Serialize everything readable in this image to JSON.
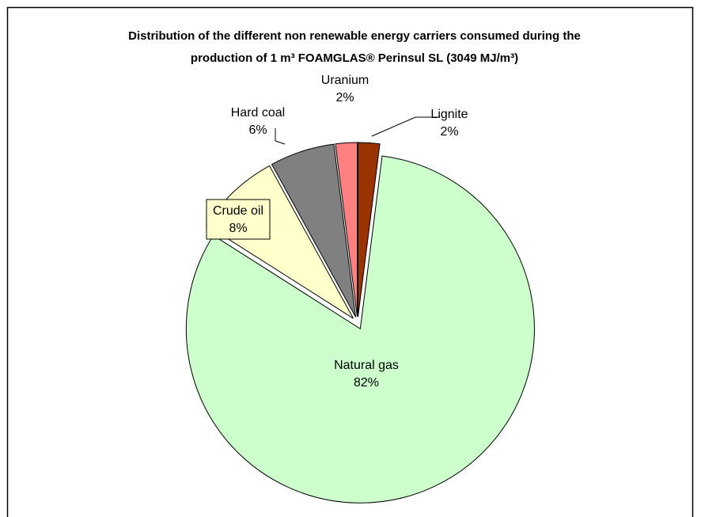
{
  "chart_data": {
    "type": "pie",
    "title": [
      "Distribution of the different non renewable energy carriers consumed during the",
      "production of 1 m³ FOAMGLAS® Perinsul SL (3049 MJ/m³)"
    ],
    "categories": [
      "Lignite",
      "Natural gas",
      "Crude oil",
      "Hard coal",
      "Uranium"
    ],
    "values": [
      2,
      82,
      8,
      6,
      2
    ],
    "value_labels": [
      "2%",
      "82%",
      "8%",
      "6%",
      "2%"
    ],
    "colors": [
      "#993300",
      "#ccffcc",
      "#ffffcc",
      "#808080",
      "#ff8080"
    ]
  }
}
